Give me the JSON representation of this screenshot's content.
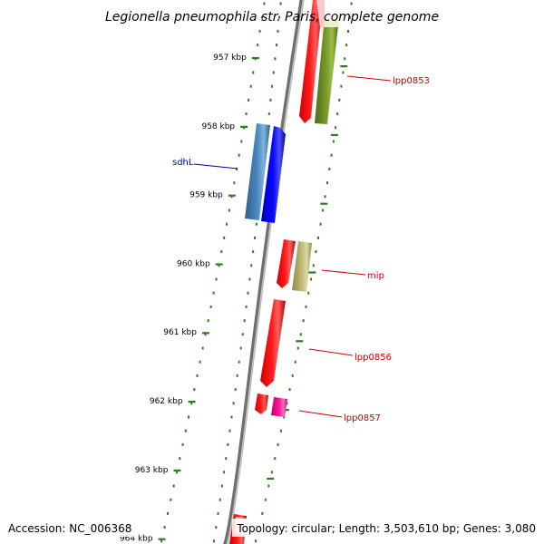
{
  "title": "Legionella pneumophila str. Paris, complete genome",
  "footer": {
    "accession": "Accession: NC_006368",
    "topology": "Topology: circular; Length: 3,503,610 bp; Genes: 3,080"
  },
  "ruler": {
    "ticks": [
      {
        "kbp": 957,
        "label": "957 kbp"
      },
      {
        "kbp": 958,
        "label": "958 kbp"
      },
      {
        "kbp": 959,
        "label": "959 kbp"
      },
      {
        "kbp": 960,
        "label": "960 kbp"
      },
      {
        "kbp": 961,
        "label": "961 kbp"
      },
      {
        "kbp": 962,
        "label": "962 kbp"
      },
      {
        "kbp": 963,
        "label": "963 kbp"
      },
      {
        "kbp": 964,
        "label": "964 kbp"
      }
    ]
  },
  "genes": [
    {
      "id": "lpp0853",
      "label": "lpp0853",
      "color": "#cc0000"
    },
    {
      "id": "sdhL",
      "label": "sdhL",
      "color": "#0000aa"
    },
    {
      "id": "mip",
      "label": "mip",
      "color": "#cc0000"
    },
    {
      "id": "lpp0856",
      "label": "lpp0856",
      "color": "#cc0000"
    },
    {
      "id": "lpp0857",
      "label": "lpp0857",
      "color": "#cc0000"
    }
  ],
  "colors": {
    "backbone": "#8a8a8a",
    "ruler": "#2e7d1e",
    "feature_red": "#ff0000",
    "feature_olive": "#6b8e23",
    "feature_steelblue": "#4682b4",
    "feature_blue": "#0000ff",
    "feature_khaki": "#bdb76b",
    "feature_pink": "#ff1493"
  }
}
